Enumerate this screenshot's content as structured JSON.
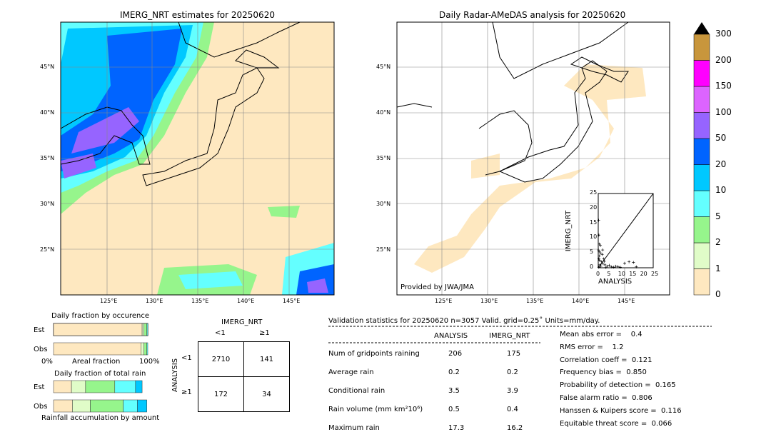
{
  "chart_data": [
    {
      "type": "heatmap",
      "title": "IMERG_NRT estimates for 20250620",
      "lon_ticks": [
        "125°E",
        "130°E",
        "135°E",
        "140°E",
        "145°E"
      ],
      "lat_ticks": [
        "45°N",
        "40°N",
        "35°N",
        "30°N",
        "25°N"
      ]
    },
    {
      "type": "heatmap",
      "title": "Daily Radar-AMeDAS analysis for 20250620",
      "lon_ticks": [
        "125°E",
        "130°E",
        "135°E",
        "140°E",
        "145°E"
      ],
      "lat_ticks": [
        "45°N",
        "40°N",
        "35°N",
        "30°N",
        "25°N"
      ],
      "credit": "Provided by JWA/JMA"
    },
    {
      "type": "colorbar",
      "levels": [
        "0",
        "1",
        "2",
        "5",
        "10",
        "20",
        "50",
        "100",
        "150",
        "200",
        "300"
      ],
      "colors": [
        "#fee8c0",
        "#e0fcc8",
        "#96f58c",
        "#64ffff",
        "#00c8ff",
        "#0064ff",
        "#9664ff",
        "#dc64ff",
        "#ff00ff",
        "#c8963c"
      ]
    },
    {
      "type": "scatter",
      "xlabel": "ANALYSIS",
      "ylabel": "IMERG_NRT",
      "xlim": [
        0,
        25
      ],
      "ylim": [
        0,
        25
      ],
      "ticks": [
        "0",
        "5",
        "10",
        "15",
        "20",
        "25"
      ],
      "points": [
        [
          0.2,
          16
        ],
        [
          0.3,
          11
        ],
        [
          0.5,
          8
        ],
        [
          1,
          5
        ],
        [
          0.5,
          4
        ],
        [
          0.3,
          3
        ],
        [
          1.5,
          2
        ],
        [
          2,
          1.5
        ],
        [
          0.6,
          2.5
        ],
        [
          1,
          7.5
        ],
        [
          2,
          6
        ],
        [
          3,
          1
        ],
        [
          4,
          0.5
        ],
        [
          5,
          0.8
        ],
        [
          6,
          0.3
        ],
        [
          7,
          0.2
        ],
        [
          8,
          0.5
        ],
        [
          10,
          0.2
        ],
        [
          12,
          1.5
        ],
        [
          14,
          2
        ],
        [
          16,
          1.8
        ],
        [
          17.3,
          0.3
        ],
        [
          0.1,
          6
        ],
        [
          0.4,
          5.5
        ],
        [
          2.5,
          3
        ],
        [
          0.8,
          1
        ],
        [
          1.2,
          0.5
        ],
        [
          0.2,
          0.2
        ],
        [
          3.5,
          0.1
        ],
        [
          9,
          0.4
        ],
        [
          1.8,
          4.5
        ],
        [
          2.8,
          2.2
        ]
      ]
    },
    {
      "type": "bar",
      "title": "Daily fraction by occurence",
      "rows": [
        "Est",
        "Obs"
      ],
      "xlabel": "Areal fraction",
      "xticks": [
        "0%",
        "100%"
      ],
      "est": [
        0.94,
        0.02,
        0.03,
        0.01
      ],
      "obs": [
        0.93,
        0.03,
        0.03,
        0.01
      ]
    },
    {
      "type": "bar",
      "title": "Daily fraction of total rain",
      "rows": [
        "Est",
        "Obs"
      ],
      "xlabel": "Rainfall accumulation by amount",
      "est": [
        0.19,
        0.15,
        0.31,
        0.22,
        0.07
      ],
      "obs": [
        0.2,
        0.19,
        0.35,
        0.15,
        0.1
      ]
    },
    {
      "type": "table",
      "title": "IMERG_NRT",
      "side": "ANALYSIS",
      "cols": [
        "<1",
        "≥1"
      ],
      "rows": [
        "<1",
        "≥1"
      ],
      "values": [
        [
          "2710",
          "141"
        ],
        [
          "172",
          "34"
        ]
      ]
    }
  ],
  "stats": {
    "header": "Validation statistics for 20250620  n=3057 Valid. grid=0.25˚ Units=mm/day.",
    "cols": [
      "ANALYSIS",
      "IMERG_NRT"
    ],
    "rows": [
      [
        "Num of gridpoints raining",
        "206",
        "175"
      ],
      [
        "Average rain",
        "0.2",
        "0.2"
      ],
      [
        "Conditional rain",
        "3.5",
        "3.9"
      ],
      [
        "Rain volume (mm km²10⁶)",
        "0.5",
        "0.4"
      ],
      [
        "Maximum rain",
        "17.3",
        "16.2"
      ]
    ],
    "scores": [
      "Mean abs error =    0.4",
      "RMS error =    1.2",
      "Correlation coeff =  0.121",
      "Frequency bias =  0.850",
      "Probability of detection =  0.165",
      "False alarm ratio =  0.806",
      "Hanssen & Kuipers score =  0.116",
      "Equitable threat score =  0.066"
    ]
  }
}
